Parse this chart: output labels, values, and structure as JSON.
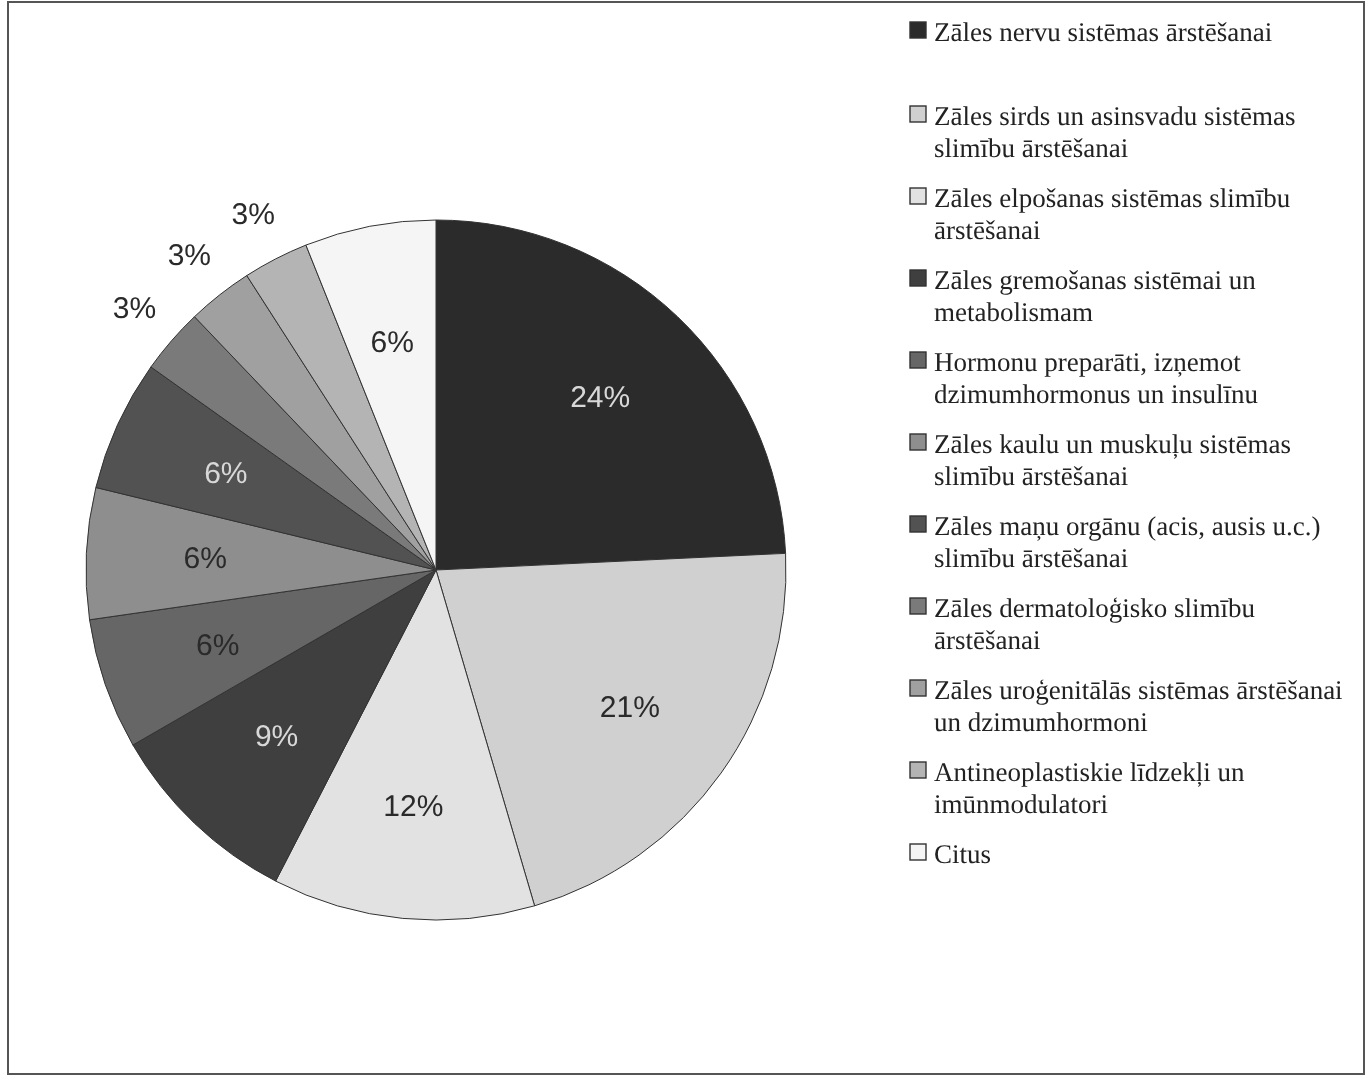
{
  "chart_data": {
    "type": "pie",
    "categories": [
      "Zāles nervu sistēmas ārstēšanai",
      "Zāles sirds un asinsvadu sistēmas slimību ārstēšanai",
      "Zāles elpošanas sistēmas slimību ārstēšanai",
      "Zāles gremošanas sistēmai un metabolismam",
      "Hormonu preparāti, izņemot dzimumhormonus un insulīnu",
      "Zāles kaulu un muskuļu sistēmas slimību ārstēšanai",
      "Zāles maņu orgānu (acis, ausis u.c.) slimību ārstēšanai",
      "Zāles dermatoloģisko slimību ārstēšanai",
      "Zāles uroģenitālās sistēmas ārstēšanai un dzimumhormoni",
      "Antineoplastiskie līdzekļi un imūnmodulatori",
      "Citus"
    ],
    "values": [
      24,
      21,
      12,
      9,
      6,
      6,
      6,
      3,
      3,
      3,
      6
    ],
    "colors": [
      "#2b2b2b",
      "#d0d0d0",
      "#e2e2e2",
      "#3f3f3f",
      "#666666",
      "#8e8e8e",
      "#525252",
      "#7a7a7a",
      "#a0a0a0",
      "#b4b4b4",
      "#f5f5f5"
    ],
    "value_labels": [
      "24%",
      "21%",
      "12%",
      "9%",
      "6%",
      "6%",
      "6%",
      "3%",
      "3%",
      "3%",
      "6%"
    ],
    "legend": "right"
  }
}
